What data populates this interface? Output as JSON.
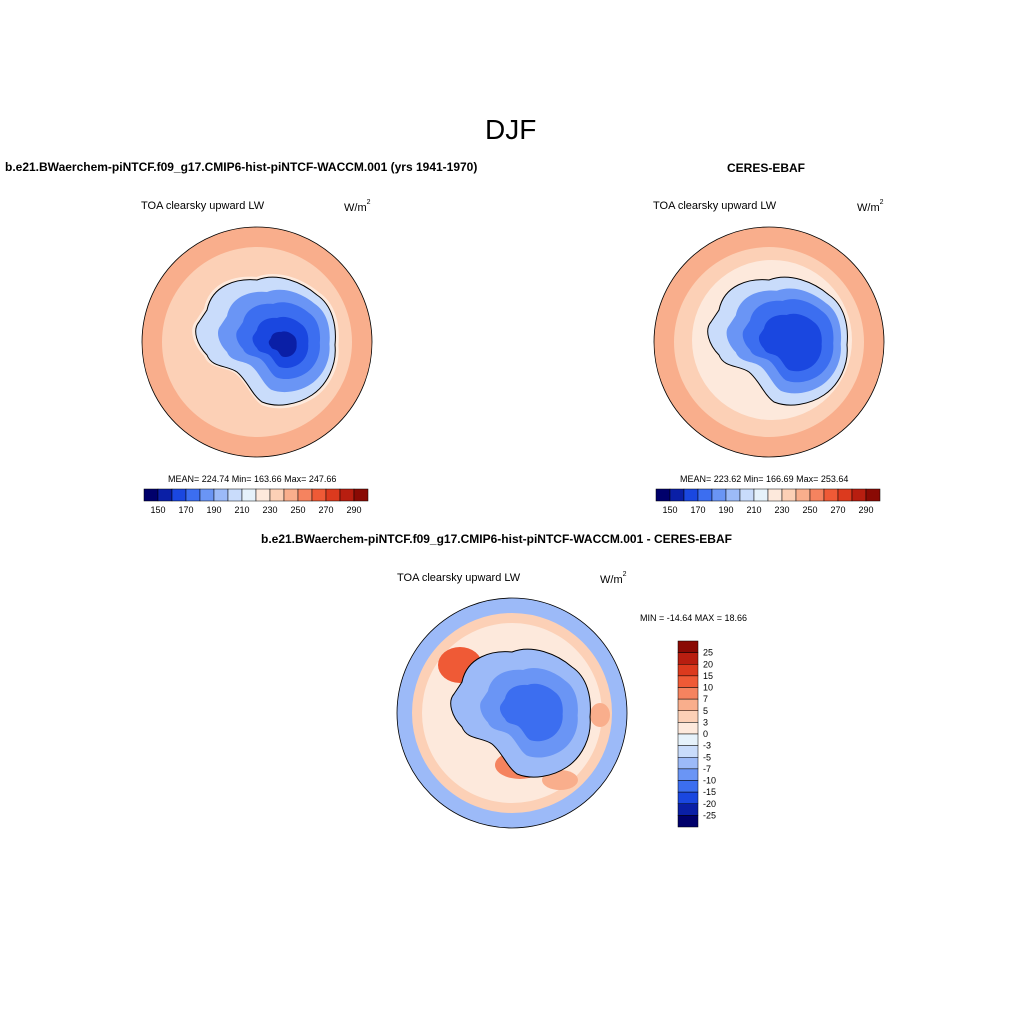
{
  "page": {
    "season": "DJF",
    "variable": "TOA clearsky upward LW",
    "units_base": "W/m",
    "units_exp": "2"
  },
  "panels": {
    "model": {
      "title": "b.e21.BWaerchem-piNTCF.f09_g17.CMIP6-hist-piNTCF-WACCM.001 (yrs 1941-1970)",
      "stats": "MEAN= 224.74  Min= 163.66  Max= 247.66"
    },
    "obs": {
      "title": "CERES-EBAF",
      "stats": "MEAN= 223.62  Min= 166.69  Max= 253.64"
    },
    "diff": {
      "title": "b.e21.BWaerchem-piNTCF.f09_g17.CMIP6-hist-piNTCF-WACCM.001 - CERES-EBAF",
      "stats": "MIN = -14.64 MAX =  18.66"
    }
  },
  "colorbar_abs": {
    "colors": [
      "#00006b",
      "#0a1fa6",
      "#1a47e0",
      "#3c6ef0",
      "#6a95f5",
      "#9cbaf8",
      "#c9dcfb",
      "#e6f2fb",
      "#fde9dc",
      "#fcd0b6",
      "#f9ae8c",
      "#f5835f",
      "#ef5a36",
      "#dc3a1e",
      "#b81e10",
      "#8a0a04"
    ],
    "labels": [
      "150",
      "170",
      "190",
      "210",
      "230",
      "250",
      "270",
      "290"
    ]
  },
  "colorbar_diff": {
    "colors": [
      "#8a0a04",
      "#b81e10",
      "#dc3a1e",
      "#ef5a36",
      "#f5835f",
      "#f9ae8c",
      "#fcd0b6",
      "#fde9dc",
      "#e6f2fb",
      "#c9dcfb",
      "#9cbaf8",
      "#6a95f5",
      "#3c6ef0",
      "#1a47e0",
      "#0a1fa6",
      "#00006b"
    ],
    "labels": [
      "25",
      "20",
      "15",
      "10",
      "7",
      "5",
      "3",
      "0",
      "-3",
      "-5",
      "-7",
      "-10",
      "-15",
      "-20",
      "-25"
    ]
  }
}
